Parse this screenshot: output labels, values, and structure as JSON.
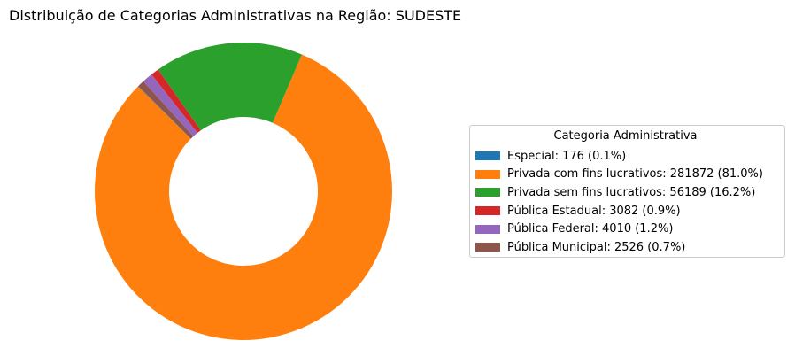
{
  "chart_data": {
    "type": "pie",
    "variant": "donut",
    "title": "Distribuição de Categorias Administrativas na Região: SUDESTE",
    "legend": {
      "title": "Categoria Administrativa",
      "placement": "right"
    },
    "slices": [
      {
        "label": "Especial: 176 (0.1%)",
        "category": "Especial",
        "value": 176,
        "percent": 0.1,
        "color": "#1f77b4"
      },
      {
        "label": "Privada com fins lucrativos: 281872 (81.0%)",
        "category": "Privada com fins lucrativos",
        "value": 281872,
        "percent": 81.0,
        "color": "#ff7f0e"
      },
      {
        "label": "Privada sem fins lucrativos: 56189 (16.2%)",
        "category": "Privada sem fins lucrativos",
        "value": 56189,
        "percent": 16.2,
        "color": "#2ca02c"
      },
      {
        "label": "Pública Estadual: 3082 (0.9%)",
        "category": "Pública Estadual",
        "value": 3082,
        "percent": 0.9,
        "color": "#d62728"
      },
      {
        "label": "Pública Federal: 4010 (1.2%)",
        "category": "Pública Federal",
        "value": 4010,
        "percent": 1.2,
        "color": "#9467bd"
      },
      {
        "label": "Pública Municipal: 2526 (0.7%)",
        "category": "Pública Municipal",
        "value": 2526,
        "percent": 0.7,
        "color": "#8c564b"
      }
    ]
  }
}
